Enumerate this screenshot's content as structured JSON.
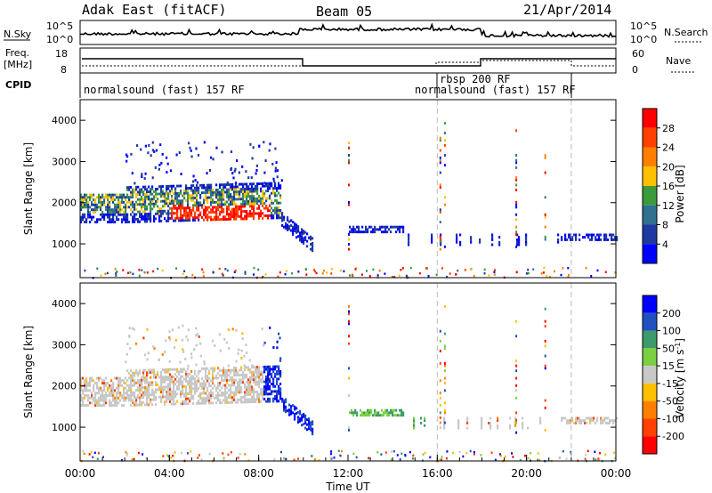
{
  "header": {
    "station": "Adak East (fitACF)",
    "beam": "Beam 05",
    "date": "21/Apr/2014"
  },
  "noise_panel": {
    "left_label": "N.Sky",
    "right_label": "N.Search",
    "left_ticks": [
      "10^5",
      "10^0"
    ],
    "right_ticks": [
      "10^5",
      "10^0"
    ]
  },
  "freq_panel": {
    "left_label_1": "Freq.",
    "left_label_2": "[MHz]",
    "right_label": "Nave",
    "left_ticks": [
      "18",
      "8"
    ],
    "right_ticks": [
      "60",
      "0"
    ]
  },
  "cpid": {
    "label": "CPID",
    "segments": [
      {
        "text": "normalsound (fast) 157 RF",
        "start": 0.0,
        "end": 16.0
      },
      {
        "text": "rbsp 200 RF",
        "start": 16.0,
        "end": 18.0
      },
      {
        "text": "normalsound (fast) 157 RF",
        "start": 16.0,
        "end": 22.0
      }
    ],
    "markers": [
      16.0,
      22.0
    ]
  },
  "chart_data": [
    {
      "type": "heatmap",
      "name": "power",
      "ylabel": "Slant Range [km]",
      "xlim": [
        0,
        24
      ],
      "ylim": [
        180,
        4500
      ],
      "yticks": [
        "4000",
        "3000",
        "2000",
        "1000"
      ],
      "ytick_values": [
        4000,
        3000,
        2000,
        1000
      ],
      "colorbar_label": "Power [dB]",
      "colorbar_ticks": [
        "28",
        "24",
        "20",
        "16",
        "12",
        "8",
        "4"
      ],
      "colorbar_colors": [
        "#ff0000",
        "#ff4000",
        "#ff8000",
        "#ffc000",
        "#3c9a3c",
        "#2f6f8f",
        "#1e3aa0",
        "#0000ff"
      ]
    },
    {
      "type": "heatmap",
      "name": "velocity",
      "ylabel": "Slant Range [km]",
      "xlim": [
        0,
        24
      ],
      "ylim": [
        180,
        4500
      ],
      "yticks": [
        "4000",
        "3000",
        "2000",
        "1000"
      ],
      "ytick_values": [
        4000,
        3000,
        2000,
        1000
      ],
      "colorbar_label": "Velocity [m s",
      "colorbar_label_sup": "-1",
      "colorbar_label_end": "]",
      "colorbar_ticks": [
        "200",
        "100",
        "50",
        "15",
        "-15",
        "-50",
        "-100",
        "-200"
      ],
      "colorbar_colors": [
        "#0000ff",
        "#2050c0",
        "#3c9a6c",
        "#7ad040",
        "#c8c8c8",
        "#ffc000",
        "#ff8000",
        "#ff4000",
        "#ff0000"
      ]
    }
  ],
  "xaxis": {
    "label": "Time UT",
    "ticks": [
      "00:00",
      "04:00",
      "08:00",
      "12:00",
      "16:00",
      "20:00",
      "00:00"
    ],
    "tick_hours": [
      0,
      4,
      8,
      12,
      16,
      20,
      24
    ]
  }
}
